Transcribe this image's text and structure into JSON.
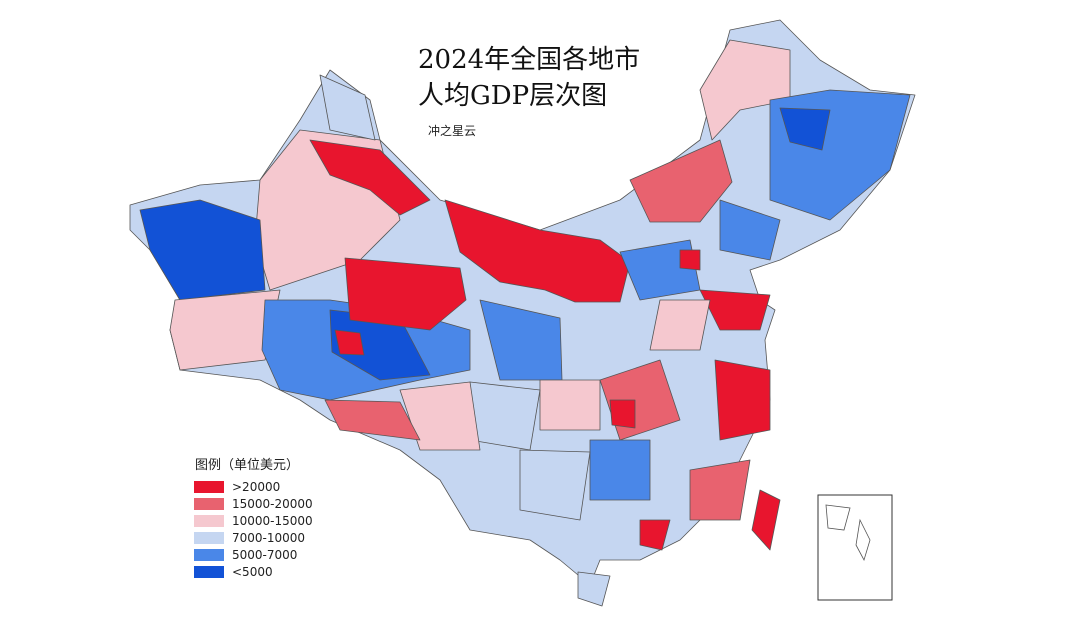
{
  "title": [
    "2024年全国各地市",
    "人均GDP层次图"
  ],
  "author": "冲之星云",
  "legend": {
    "title": "图例（单位美元）",
    "items": [
      {
        "label": ">20000",
        "color": "#e8152e"
      },
      {
        "label": "15000-20000",
        "color": "#e8626f"
      },
      {
        "label": "10000-15000",
        "color": "#f5c8cf"
      },
      {
        "label": "7000-10000",
        "color": "#c5d6f1"
      },
      {
        "label": "5000-7000",
        "color": "#4a87e8"
      },
      {
        "label": "<5000",
        "color": "#1252d6"
      }
    ]
  }
}
